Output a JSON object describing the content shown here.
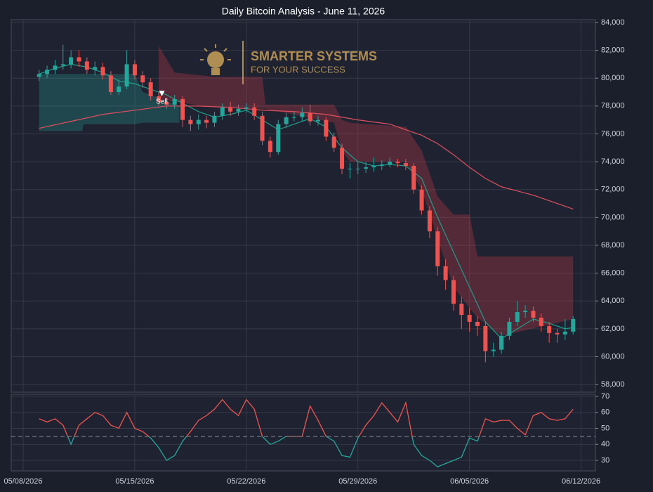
{
  "chart_data": [
    {
      "type": "candlestick",
      "title": "Daily Bitcoin Analysis - June 11, 2026",
      "watermark": [
        "SMARTER SYSTEMS",
        "FOR YOUR SUCCESS"
      ],
      "x": [
        1,
        1.5,
        2,
        2.5,
        3,
        3.5,
        4,
        4.5,
        5,
        5.5,
        6,
        6.5,
        7,
        7.5,
        8,
        8.5,
        9,
        9.5,
        10,
        10.5,
        11,
        11.5,
        12,
        12.5,
        13,
        13.5,
        14,
        14.5,
        15,
        15.5,
        16,
        16.5,
        17,
        17.5,
        18,
        18.5,
        19,
        19.5,
        20,
        20.5,
        21,
        21.5,
        22,
        22.5,
        23,
        23.5,
        24,
        24.5,
        25,
        25.5,
        26,
        26.5,
        27,
        27.5,
        28,
        28.5,
        29,
        29.5,
        30,
        30.5,
        31,
        31.5,
        32,
        32.5,
        33,
        33.5,
        34,
        34.5
      ],
      "open": [
        80100,
        80300,
        80600,
        80900,
        81000,
        81500,
        81200,
        80600,
        80800,
        80200,
        79000,
        79400,
        81000,
        80200,
        79700,
        78700,
        78300,
        78100,
        78500,
        77000,
        76700,
        77000,
        76800,
        77300,
        77900,
        77600,
        77800,
        77900,
        77300,
        75500,
        74700,
        76700,
        77200,
        77200,
        77500,
        76900,
        77000,
        75800,
        75000,
        73500,
        73500,
        73500,
        73600,
        73700,
        73800,
        74000,
        73900,
        73700,
        72000,
        70500,
        69000,
        66500,
        65500,
        63800,
        63000,
        62500,
        62200,
        60400,
        60500,
        61500,
        62500,
        63200,
        63300,
        62800,
        62200,
        61700,
        61600,
        61800
      ],
      "high": [
        80600,
        80900,
        81300,
        82400,
        82000,
        82000,
        81500,
        81200,
        81100,
        80500,
        79900,
        82000,
        81300,
        80500,
        80000,
        79000,
        78600,
        78800,
        78700,
        77300,
        77400,
        77300,
        77600,
        78200,
        78300,
        78100,
        78200,
        78200,
        77600,
        75800,
        77000,
        77500,
        77600,
        77900,
        78100,
        77300,
        77200,
        76100,
        75300,
        73900,
        74000,
        74000,
        74300,
        74100,
        74300,
        74200,
        74200,
        73900,
        72300,
        70800,
        69300,
        67000,
        65800,
        64300,
        63500,
        62900,
        62500,
        61000,
        61800,
        62800,
        64000,
        63700,
        63600,
        63100,
        62500,
        62000,
        62700,
        62900
      ],
      "low": [
        79800,
        80000,
        80300,
        80600,
        80700,
        80800,
        80300,
        80200,
        79900,
        78800,
        78800,
        79200,
        79900,
        79300,
        78400,
        78000,
        77800,
        77800,
        76500,
        76200,
        76300,
        76400,
        76500,
        77000,
        77300,
        77300,
        77500,
        77000,
        75200,
        74300,
        74500,
        76400,
        76900,
        76900,
        76600,
        76600,
        75500,
        74700,
        73100,
        72800,
        73100,
        73200,
        73300,
        73400,
        73600,
        73600,
        73400,
        71700,
        70200,
        68500,
        65800,
        64800,
        63300,
        62000,
        61800,
        61500,
        59600,
        60000,
        60200,
        61200,
        62200,
        62800,
        62500,
        61800,
        61000,
        61000,
        61200,
        61600
      ],
      "close": [
        80300,
        80600,
        80900,
        81000,
        81500,
        81200,
        80600,
        80800,
        80200,
        79000,
        79400,
        81000,
        80200,
        79700,
        78700,
        78300,
        78100,
        78500,
        77000,
        76700,
        77000,
        76800,
        77300,
        77900,
        77600,
        77800,
        77900,
        77300,
        75500,
        74700,
        76700,
        77200,
        77200,
        77500,
        76900,
        77000,
        75800,
        75000,
        73500,
        73500,
        73500,
        73600,
        73700,
        73800,
        74000,
        73900,
        73700,
        72000,
        70500,
        69000,
        66500,
        65500,
        63800,
        63000,
        62500,
        62200,
        60400,
        60500,
        61500,
        62500,
        63200,
        63300,
        62800,
        62200,
        61700,
        61600,
        61800,
        62700
      ],
      "up_color": "#26a69a",
      "down_color": "#ef5350",
      "lines": [
        {
          "color": "#1f9e89",
          "x": [
            1,
            2,
            3,
            4,
            5,
            6,
            7,
            8,
            9,
            10,
            11,
            12,
            13,
            14,
            15,
            16,
            17,
            18,
            19,
            20,
            21,
            22,
            23,
            24,
            25,
            26,
            27,
            28,
            29,
            30,
            31,
            32,
            33,
            34,
            34.5
          ],
          "values": [
            80300,
            80700,
            81000,
            80800,
            80400,
            79800,
            79600,
            79200,
            78800,
            78200,
            77600,
            77200,
            77400,
            77700,
            77000,
            76300,
            76700,
            77100,
            76500,
            75000,
            74000,
            73700,
            73800,
            73700,
            72800,
            70000,
            67500,
            65000,
            62500,
            61300,
            62000,
            62700,
            62400,
            62000,
            62100
          ]
        },
        {
          "color": "#e04f5f",
          "x": [
            1,
            3,
            5,
            7,
            9,
            11,
            13,
            15,
            17,
            19,
            21,
            23,
            24,
            25,
            26,
            27,
            28,
            29,
            30,
            31,
            32,
            33,
            34,
            34.5
          ],
          "values": [
            76400,
            76900,
            77400,
            77700,
            78000,
            78000,
            77900,
            77700,
            77600,
            77400,
            77000,
            76700,
            76300,
            75900,
            75300,
            74500,
            73600,
            72800,
            72200,
            71900,
            71600,
            71200,
            70800,
            70600
          ]
        }
      ],
      "bands": [
        {
          "color": "rgba(38,166,154,0.28)",
          "x": [
            1,
            3.7,
            3.8,
            7,
            7.5,
            9.8
          ],
          "upper": [
            80300,
            80300,
            80300,
            80300,
            79000,
            78000
          ],
          "lower": [
            76200,
            76200,
            76700,
            76700,
            76800,
            76800
          ]
        },
        {
          "color": "rgba(170,55,70,0.38)",
          "x": [
            8.5,
            9.5,
            12,
            15,
            15.2,
            19.5,
            20,
            20.5,
            24,
            25,
            26,
            27,
            28,
            28.5,
            30,
            34.5
          ],
          "upper": [
            82300,
            80400,
            80100,
            80100,
            78100,
            78100,
            77000,
            76800,
            76500,
            74800,
            71500,
            70200,
            70200,
            67200,
            67200,
            67200
          ],
          "lower": [
            78500,
            78300,
            77900,
            77800,
            77800,
            76800,
            74800,
            74000,
            74000,
            72000,
            68500,
            65000,
            63500,
            62800,
            61500,
            62700
          ]
        }
      ],
      "annotations": [
        {
          "text": "Sell",
          "x": 8.7,
          "y": 78700
        }
      ],
      "xlim": [
        -0.75,
        35.9
      ],
      "ylim": [
        57450,
        84200
      ],
      "yticks": [
        {
          "value": 58000,
          "label": "58,000"
        },
        {
          "value": 60000,
          "label": "60,000"
        },
        {
          "value": 62000,
          "label": "62,000"
        },
        {
          "value": 64000,
          "label": "64,000"
        },
        {
          "value": 66000,
          "label": "66,000"
        },
        {
          "value": 68000,
          "label": "68,000"
        },
        {
          "value": 70000,
          "label": "70,000"
        },
        {
          "value": 72000,
          "label": "72,000"
        },
        {
          "value": 74000,
          "label": "74,000"
        },
        {
          "value": 76000,
          "label": "76,000"
        },
        {
          "value": 78000,
          "label": "78,000"
        },
        {
          "value": 80000,
          "label": "80,000"
        },
        {
          "value": 82000,
          "label": "82,000"
        },
        {
          "value": 84000,
          "label": "84,000"
        }
      ],
      "grid": true
    },
    {
      "type": "line",
      "x": [
        1,
        1.5,
        2,
        2.5,
        3,
        3.5,
        4,
        4.5,
        5,
        5.5,
        6,
        6.5,
        7,
        7.5,
        8,
        8.5,
        9,
        9.5,
        10,
        10.5,
        11,
        11.5,
        12,
        12.5,
        13,
        13.5,
        14,
        14.5,
        15,
        15.5,
        16,
        16.5,
        17,
        17.5,
        18,
        18.5,
        19,
        19.5,
        20,
        20.5,
        21,
        21.5,
        22,
        22.5,
        23,
        23.5,
        24,
        24.5,
        25,
        25.5,
        26,
        26.5,
        27,
        27.5,
        28,
        28.5,
        29,
        29.5,
        30,
        30.5,
        31,
        31.5,
        32,
        32.5,
        33,
        33.5,
        34,
        34.5
      ],
      "values": [
        56,
        54,
        56,
        52,
        40,
        52,
        56,
        60,
        58,
        52,
        50,
        60,
        50,
        48,
        44,
        38,
        30,
        33,
        42,
        48,
        55,
        58,
        62,
        68,
        62,
        58,
        68,
        62,
        45,
        40,
        42,
        45,
        45,
        45,
        64,
        55,
        45,
        42,
        33,
        32,
        44,
        52,
        58,
        66,
        60,
        54,
        66,
        40,
        33,
        30,
        26,
        28,
        30,
        32,
        44,
        42,
        56,
        54,
        55,
        55,
        50,
        46,
        58,
        60,
        56,
        55,
        56,
        62
      ],
      "threshold": 45,
      "above_color": "#ef5350",
      "below_color": "#26a69a",
      "xlim": [
        -0.75,
        35.9
      ],
      "ylim": [
        23.4,
        71.3
      ],
      "yticks": [
        30,
        40,
        50,
        60,
        70
      ],
      "xticks": [
        {
          "value": 0,
          "label": "05/08/2026"
        },
        {
          "value": 7,
          "label": "05/15/2026"
        },
        {
          "value": 14,
          "label": "05/22/2026"
        },
        {
          "value": 21,
          "label": "05/29/2026"
        },
        {
          "value": 28,
          "label": "06/05/2026"
        },
        {
          "value": 35,
          "label": "06/12/2026"
        }
      ],
      "grid": true
    }
  ]
}
